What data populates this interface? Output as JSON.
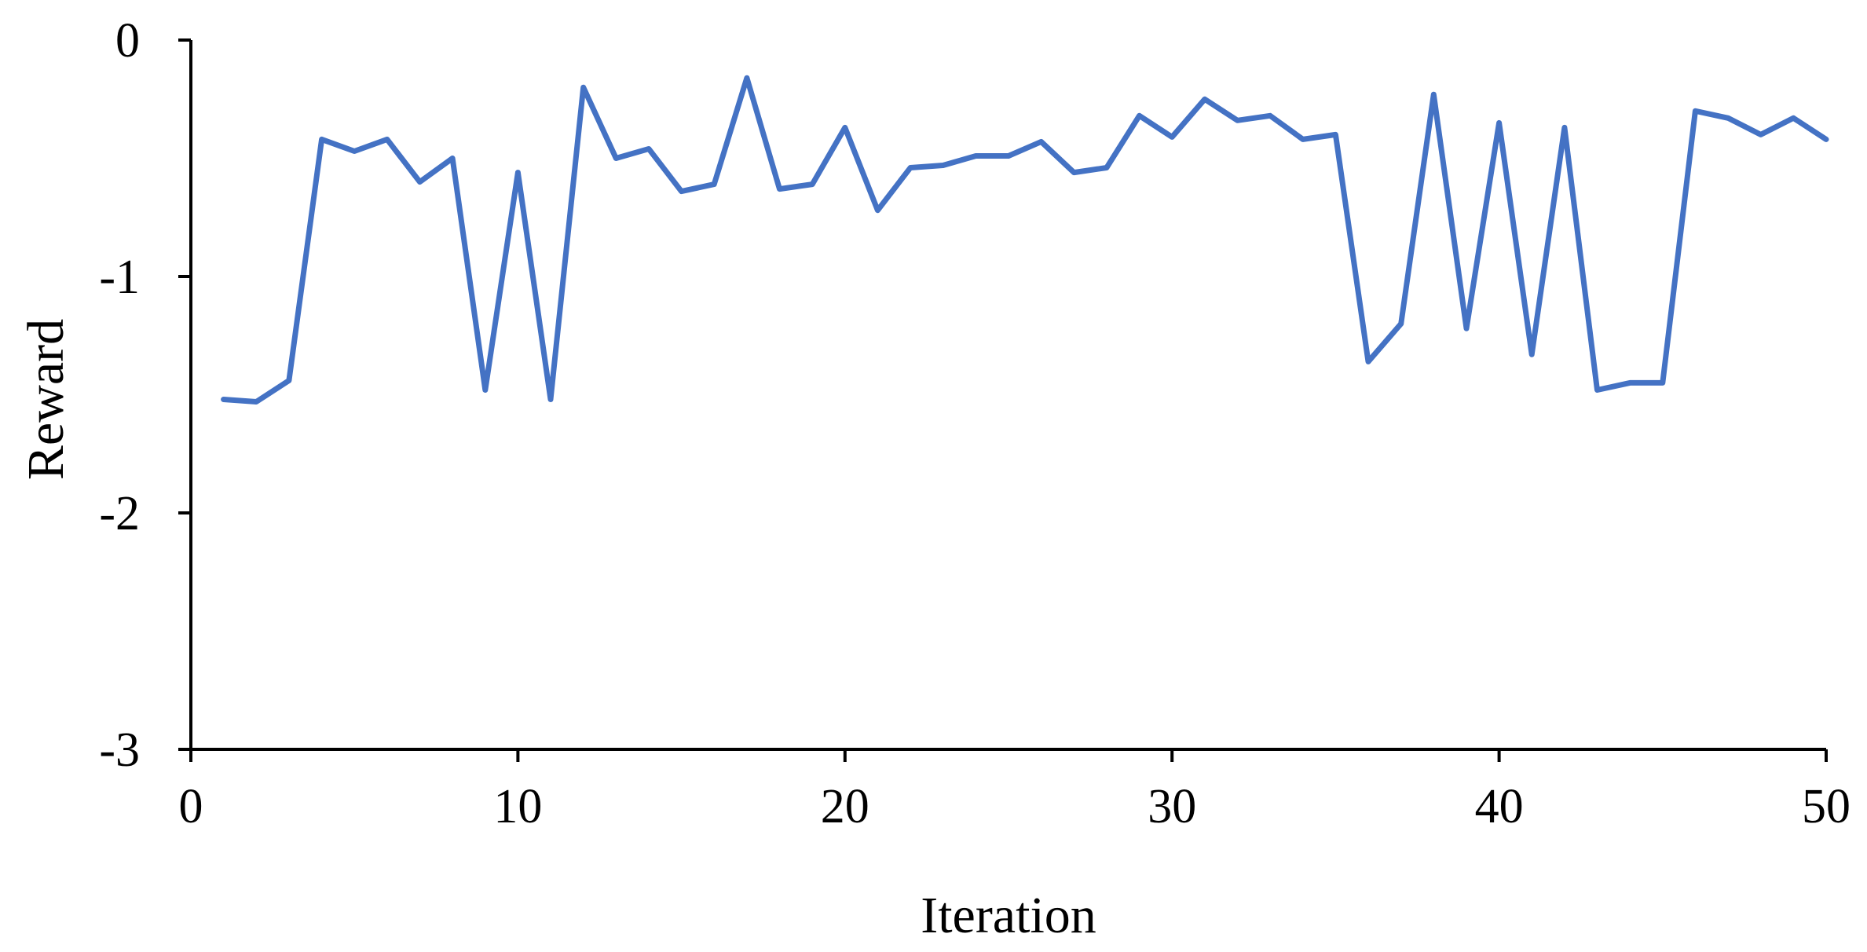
{
  "chart_data": {
    "type": "line",
    "title": "",
    "xlabel": "Iteration",
    "ylabel": "Reward",
    "xlim": [
      0,
      50
    ],
    "ylim": [
      -3,
      0
    ],
    "xticks": [
      0,
      10,
      20,
      30,
      40,
      50
    ],
    "xtick_labels": [
      "0",
      "10",
      "20",
      "30",
      "40",
      "50"
    ],
    "yticks": [
      0,
      -1,
      -2,
      -3
    ],
    "ytick_labels": [
      "0",
      "-1",
      "-2",
      "-3"
    ],
    "grid": false,
    "legend": "none",
    "series_color": "#4472C4",
    "x": [
      1,
      2,
      3,
      4,
      5,
      6,
      7,
      8,
      9,
      10,
      11,
      12,
      13,
      14,
      15,
      16,
      17,
      18,
      19,
      20,
      21,
      22,
      23,
      24,
      25,
      26,
      27,
      28,
      29,
      30,
      31,
      32,
      33,
      34,
      35,
      36,
      37,
      38,
      39,
      40,
      41,
      42,
      43,
      44,
      45,
      46,
      47,
      48,
      49,
      50
    ],
    "series": [
      {
        "values": [
          -1.52,
          -1.53,
          -1.44,
          -0.42,
          -0.47,
          -0.42,
          -0.6,
          -0.5,
          -1.48,
          -0.56,
          -1.52,
          -0.2,
          -0.5,
          -0.46,
          -0.64,
          -0.61,
          -0.16,
          -0.63,
          -0.61,
          -0.37,
          -0.72,
          -0.54,
          -0.53,
          -0.49,
          -0.49,
          -0.43,
          -0.56,
          -0.54,
          -0.32,
          -0.41,
          -0.25,
          -0.34,
          -0.32,
          -0.42,
          -0.4,
          -1.36,
          -1.2,
          -0.23,
          -1.22,
          -0.35,
          -1.33,
          -0.37,
          -1.48,
          -1.45,
          -1.45,
          -0.3,
          -0.33,
          -0.4,
          -0.33,
          -0.42
        ]
      }
    ]
  }
}
